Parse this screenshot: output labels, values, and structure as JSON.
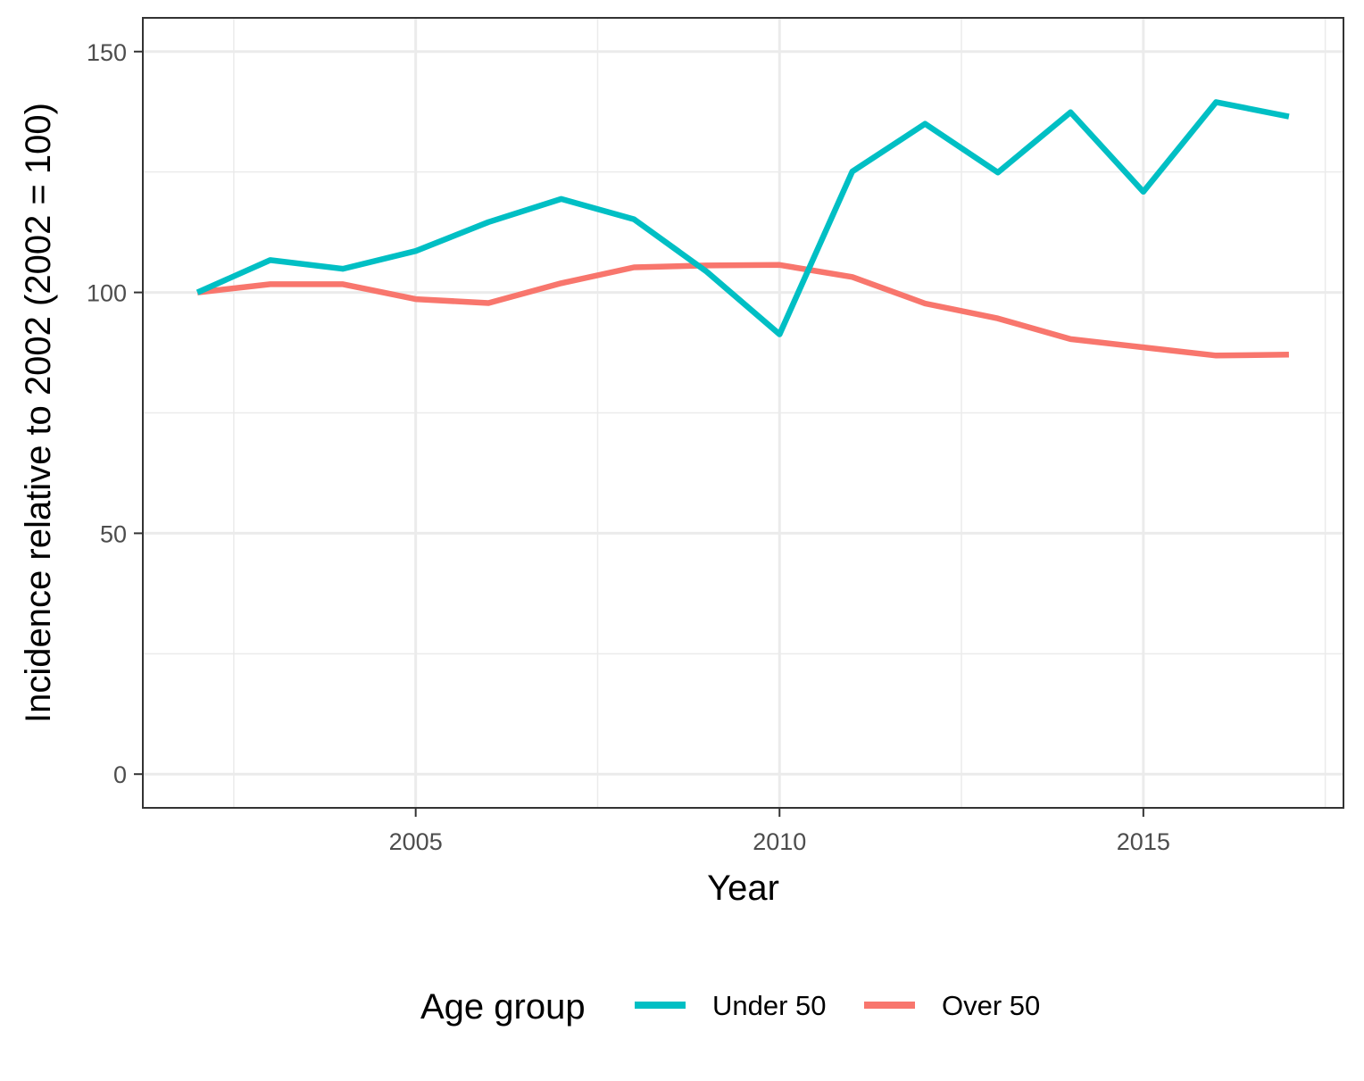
{
  "chart_data": {
    "type": "line",
    "title": "",
    "xlabel": "Year",
    "ylabel": "Incidence relative to 2002 (2002 = 100)",
    "xlim": [
      2001.25,
      2017.75
    ],
    "ylim": [
      -7,
      157
    ],
    "x_ticks": [
      2005,
      2010,
      2015
    ],
    "x_tick_labels": [
      "2005",
      "2010",
      "2015"
    ],
    "y_ticks": [
      0,
      50,
      100,
      150
    ],
    "y_tick_labels": [
      "0",
      "50",
      "100",
      "150"
    ],
    "grid": true,
    "x": [
      2002,
      2003,
      2004,
      2005,
      2006,
      2007,
      2008,
      2009,
      2010,
      2011,
      2012,
      2013,
      2014,
      2015,
      2016,
      2017
    ],
    "series": [
      {
        "name": "Under 50",
        "color": "#00BFC4",
        "values": [
          100,
          106.7,
          104.9,
          108.6,
          114.6,
          119.4,
          115.2,
          104.3,
          91.3,
          125.1,
          135.0,
          124.9,
          137.4,
          120.9,
          139.5,
          136.5
        ]
      },
      {
        "name": "Over 50",
        "color": "#F8766D",
        "values": [
          100,
          101.7,
          101.7,
          98.6,
          97.8,
          101.9,
          105.2,
          105.6,
          105.7,
          103.2,
          97.7,
          94.6,
          90.3,
          88.6,
          86.9,
          87.1
        ]
      }
    ],
    "legend": {
      "title": "Age group",
      "position": "bottom",
      "entries": [
        "Under 50",
        "Over 50"
      ]
    }
  }
}
